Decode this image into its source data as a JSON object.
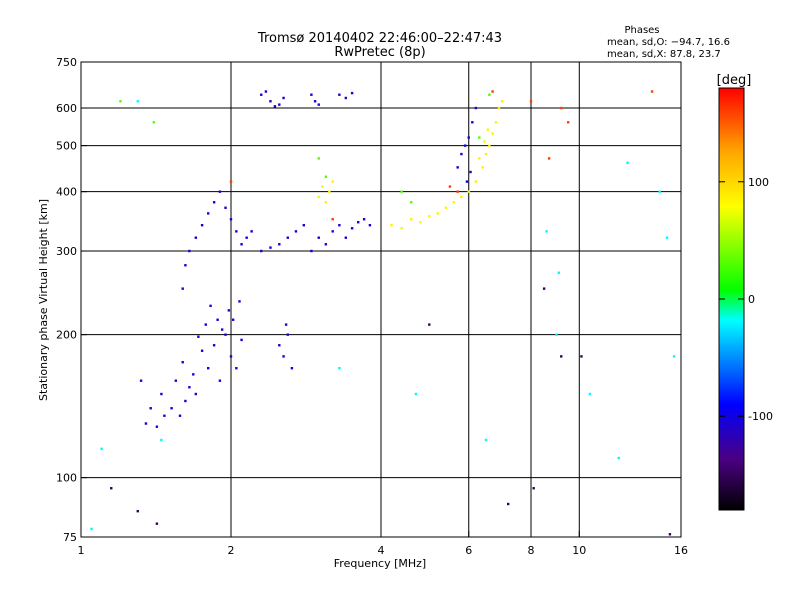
{
  "chart_data": {
    "type": "scatter",
    "title": "Tromsø 20140402 22:46:00–22:47:43",
    "subtitle": "RwPretec (8p)",
    "xlabel": "Frequency [MHz]",
    "ylabel": "Stationary phase Virtual Height [km]",
    "x_scale": "log",
    "y_scale": "log",
    "xlim": [
      1,
      16
    ],
    "ylim": [
      75,
      750
    ],
    "x_ticks": [
      1,
      2,
      4,
      6,
      8,
      10,
      16
    ],
    "y_ticks": [
      75,
      100,
      200,
      300,
      400,
      500,
      600,
      750
    ],
    "x_gridlines": [
      2,
      4,
      6,
      8,
      10
    ],
    "y_gridlines": [
      100,
      200,
      300,
      400,
      500,
      600
    ],
    "grid": true,
    "stats": {
      "title": "Phases",
      "line_o": "mean, sd,O: −94.7, 16.6",
      "line_x": "mean, sd,X:  87.8, 23.7"
    },
    "colorbar": {
      "label": "[deg]",
      "range": [
        -180,
        180
      ],
      "ticks": [
        100,
        0,
        -100
      ]
    },
    "series": [
      {
        "name": "",
        "color_phase": -105,
        "points": [
          [
            1.55,
            160
          ],
          [
            1.6,
            175
          ],
          [
            1.65,
            155
          ],
          [
            1.7,
            150
          ],
          [
            1.75,
            185
          ],
          [
            1.8,
            170
          ],
          [
            1.85,
            190
          ],
          [
            1.9,
            160
          ],
          [
            1.95,
            200
          ],
          [
            2.0,
            180
          ],
          [
            2.05,
            170
          ],
          [
            2.1,
            195
          ],
          [
            1.52,
            140
          ],
          [
            1.58,
            135
          ],
          [
            1.62,
            145
          ],
          [
            1.68,
            165
          ],
          [
            1.72,
            198
          ],
          [
            1.78,
            210
          ],
          [
            1.82,
            230
          ],
          [
            1.88,
            215
          ],
          [
            1.92,
            205
          ],
          [
            1.98,
            225
          ],
          [
            2.02,
            215
          ],
          [
            2.08,
            235
          ],
          [
            1.45,
            150
          ],
          [
            1.47,
            135
          ],
          [
            1.42,
            128
          ],
          [
            1.38,
            140
          ],
          [
            1.35,
            130
          ],
          [
            1.32,
            160
          ],
          [
            1.6,
            250
          ],
          [
            1.62,
            280
          ],
          [
            1.65,
            300
          ],
          [
            1.7,
            320
          ],
          [
            1.75,
            340
          ],
          [
            1.8,
            360
          ],
          [
            1.85,
            380
          ],
          [
            1.9,
            400
          ],
          [
            1.95,
            370
          ],
          [
            2.0,
            350
          ],
          [
            2.05,
            330
          ],
          [
            2.1,
            310
          ],
          [
            2.15,
            320
          ],
          [
            2.2,
            330
          ],
          [
            2.3,
            300
          ],
          [
            2.4,
            305
          ],
          [
            2.5,
            310
          ],
          [
            2.6,
            320
          ],
          [
            2.7,
            330
          ],
          [
            2.8,
            340
          ],
          [
            2.9,
            300
          ],
          [
            3.0,
            320
          ],
          [
            3.1,
            310
          ],
          [
            3.2,
            330
          ],
          [
            3.3,
            340
          ],
          [
            3.4,
            320
          ],
          [
            3.5,
            335
          ],
          [
            3.6,
            345
          ],
          [
            3.7,
            350
          ],
          [
            3.8,
            340
          ],
          [
            2.3,
            640
          ],
          [
            2.4,
            620
          ],
          [
            2.5,
            610
          ],
          [
            2.35,
            650
          ],
          [
            2.45,
            605
          ],
          [
            2.55,
            630
          ],
          [
            2.9,
            640
          ],
          [
            2.95,
            620
          ],
          [
            3.0,
            610
          ],
          [
            3.3,
            640
          ],
          [
            3.4,
            630
          ],
          [
            3.5,
            645
          ],
          [
            2.5,
            190
          ],
          [
            2.55,
            180
          ],
          [
            2.6,
            200
          ],
          [
            2.65,
            170
          ],
          [
            2.58,
            210
          ],
          [
            5.7,
            450
          ],
          [
            5.8,
            480
          ],
          [
            5.9,
            500
          ],
          [
            6.0,
            520
          ],
          [
            6.1,
            560
          ],
          [
            6.2,
            600
          ],
          [
            5.95,
            420
          ],
          [
            6.05,
            440
          ]
        ]
      },
      {
        "name": "",
        "color_phase": 85,
        "points": [
          [
            3.1,
            380
          ],
          [
            3.15,
            400
          ],
          [
            3.2,
            420
          ],
          [
            3.0,
            390
          ],
          [
            3.05,
            410
          ],
          [
            4.2,
            340
          ],
          [
            4.4,
            335
          ],
          [
            4.6,
            350
          ],
          [
            4.8,
            345
          ],
          [
            5.0,
            355
          ],
          [
            5.2,
            360
          ],
          [
            5.4,
            370
          ],
          [
            5.6,
            380
          ],
          [
            5.8,
            390
          ],
          [
            6.0,
            400
          ],
          [
            6.2,
            420
          ],
          [
            6.4,
            450
          ],
          [
            6.5,
            480
          ],
          [
            6.6,
            500
          ],
          [
            6.7,
            530
          ],
          [
            6.8,
            560
          ],
          [
            6.9,
            600
          ],
          [
            7.0,
            620
          ],
          [
            6.3,
            470
          ],
          [
            6.45,
            510
          ],
          [
            6.55,
            540
          ]
        ]
      },
      {
        "name": "",
        "color_phase": 30,
        "points": [
          [
            3.0,
            470
          ],
          [
            3.1,
            430
          ],
          [
            4.4,
            400
          ],
          [
            4.6,
            380
          ],
          [
            6.3,
            520
          ],
          [
            6.6,
            640
          ],
          [
            1.4,
            560
          ],
          [
            1.2,
            620
          ]
        ]
      },
      {
        "name": "",
        "color_phase": 160,
        "points": [
          [
            5.5,
            410
          ],
          [
            5.7,
            400
          ],
          [
            6.7,
            650
          ],
          [
            8.0,
            620
          ],
          [
            9.2,
            600
          ],
          [
            9.5,
            560
          ],
          [
            8.7,
            470
          ],
          [
            14.0,
            650
          ],
          [
            2.0,
            420
          ],
          [
            3.2,
            350
          ]
        ]
      },
      {
        "name": "",
        "color_phase": -20,
        "points": [
          [
            1.1,
            115
          ],
          [
            1.3,
            620
          ],
          [
            1.45,
            120
          ],
          [
            3.3,
            170
          ],
          [
            4.7,
            150
          ],
          [
            6.5,
            120
          ],
          [
            9.0,
            200
          ],
          [
            10.5,
            150
          ],
          [
            12.0,
            110
          ],
          [
            14.5,
            400
          ],
          [
            15.0,
            320
          ],
          [
            15.5,
            180
          ],
          [
            12.5,
            460
          ],
          [
            8.6,
            330
          ],
          [
            9.1,
            270
          ],
          [
            1.05,
            78
          ]
        ]
      },
      {
        "name": "",
        "color_phase": -150,
        "points": [
          [
            1.15,
            95
          ],
          [
            1.3,
            85
          ],
          [
            1.42,
            80
          ],
          [
            8.5,
            250
          ],
          [
            9.2,
            180
          ],
          [
            15.2,
            76
          ],
          [
            7.2,
            88
          ],
          [
            8.1,
            95
          ],
          [
            10.1,
            180
          ],
          [
            5.0,
            210
          ]
        ]
      }
    ]
  }
}
